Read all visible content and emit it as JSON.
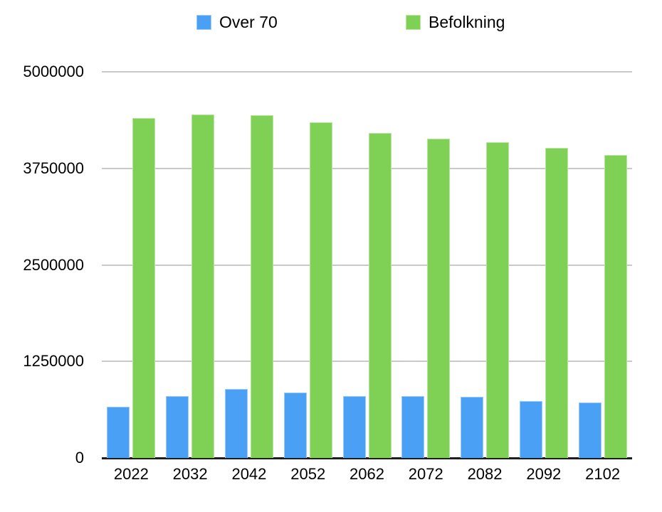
{
  "chart_data": {
    "type": "bar",
    "title": "",
    "xlabel": "",
    "ylabel": "",
    "categories": [
      "2022",
      "2032",
      "2042",
      "2052",
      "2062",
      "2072",
      "2082",
      "2092",
      "2102"
    ],
    "series": [
      {
        "name": "Over 70",
        "color": "#4AA0F5",
        "values": [
          665000,
          800000,
          895000,
          850000,
          800000,
          805000,
          795000,
          735000,
          720000
        ]
      },
      {
        "name": "Befolkning",
        "color": "#7ED155",
        "values": [
          4400000,
          4445000,
          4440000,
          4350000,
          4210000,
          4130000,
          4085000,
          4015000,
          3920000
        ]
      }
    ],
    "ylim": [
      0,
      5000000
    ],
    "y_ticks": [
      0,
      1250000,
      2500000,
      3750000,
      5000000
    ],
    "y_tick_labels": [
      "0",
      "1250000",
      "2500000",
      "3750000",
      "5000000"
    ],
    "grid": true,
    "legend_position": "top"
  },
  "colors": {
    "over70": "#4AA0F5",
    "befolkning": "#7ED155",
    "gridline": "#c9c9c9",
    "axis": "#1d1d1d",
    "text": "#000000",
    "background": "#ffffff"
  }
}
